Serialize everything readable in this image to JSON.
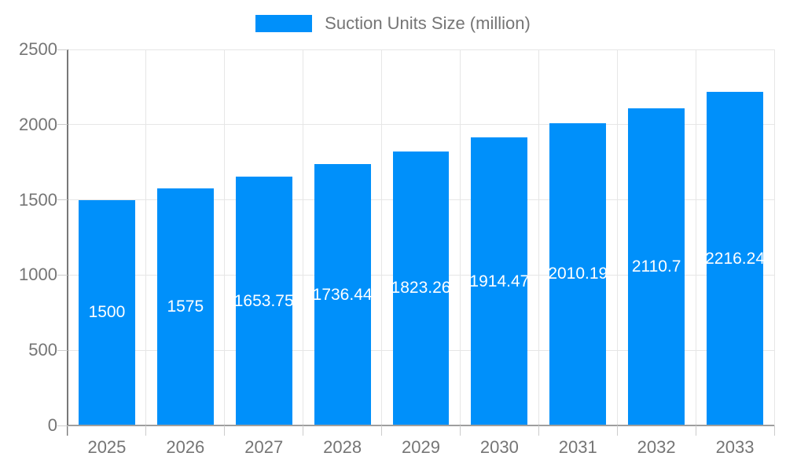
{
  "legend": {
    "label": "Suction Units Size (million)"
  },
  "colors": {
    "bar": "#0090fa",
    "grid": "#e6e6e6",
    "x_axis_line": "#9e9e9e",
    "y_axis_line": "#787878",
    "tick": "#cccccc",
    "axis_text": "#757575",
    "value_text": "#ffffff",
    "background": "#ffffff"
  },
  "chart_data": {
    "type": "bar",
    "title": "Suction Units Size (million)",
    "xlabel": "",
    "ylabel": "",
    "categories": [
      "2025",
      "2026",
      "2027",
      "2028",
      "2029",
      "2030",
      "2031",
      "2032",
      "2033"
    ],
    "series": [
      {
        "name": "Suction Units Size (million)",
        "values": [
          1500,
          1575,
          1653.75,
          1736.44,
          1823.26,
          1914.47,
          2010.19,
          2110.7,
          2216.24
        ]
      }
    ],
    "value_labels": [
      "1500",
      "1575",
      "1653.75",
      "1736.44",
      "1823.26",
      "1914.47",
      "2010.19",
      "2110.7",
      "2216.24"
    ],
    "ylim": [
      0,
      2500
    ],
    "yticks": [
      0,
      500,
      1000,
      1500,
      2000,
      2500
    ],
    "grid": true,
    "legend_position": "top",
    "bar_width_fraction": 0.72
  }
}
